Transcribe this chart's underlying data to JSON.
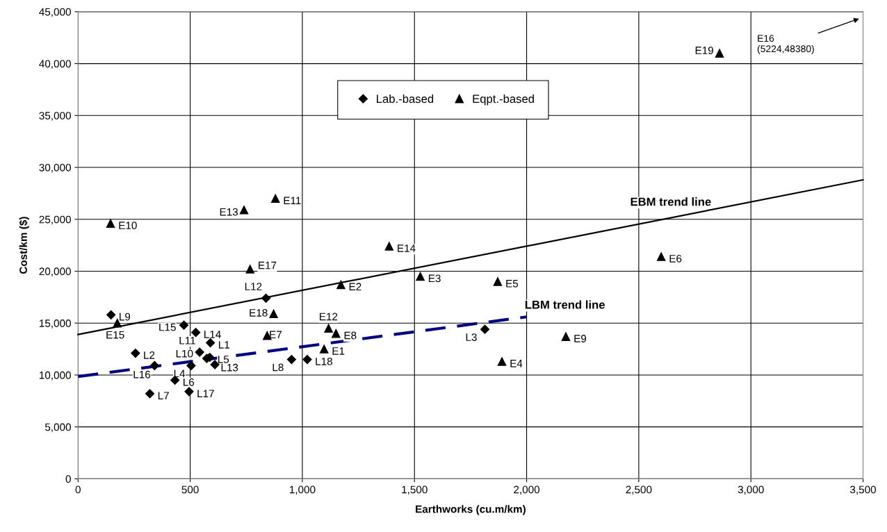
{
  "chart_data": {
    "type": "scatter",
    "xlabel": "Earthworks (cu.m/km)",
    "ylabel": "Cost/km ($)",
    "xlim": [
      0,
      3500
    ],
    "ylim": [
      0,
      45000
    ],
    "xticks": [
      0,
      {
        "value": 500,
        "label": "500"
      },
      {
        "value": 1000,
        "label": "1,000"
      },
      {
        "value": 1500,
        "label": "1,500"
      },
      {
        "value": 2000,
        "label": "2,000"
      },
      {
        "value": 2500,
        "label": "2,500"
      },
      {
        "value": 3000,
        "label": "3,000"
      },
      {
        "value": 3500,
        "label": "3,500"
      }
    ],
    "yticks": [
      0,
      {
        "value": 5000,
        "label": "5,000"
      },
      {
        "value": 10000,
        "label": "10,000"
      },
      {
        "value": 15000,
        "label": "15,000"
      },
      {
        "value": 20000,
        "label": "20,000"
      },
      {
        "value": 25000,
        "label": "25,000"
      },
      {
        "value": 30000,
        "label": "30,000"
      },
      {
        "value": 35000,
        "label": "35,000"
      },
      {
        "value": 40000,
        "label": "40,000"
      },
      {
        "value": 45000,
        "label": "45,000"
      }
    ],
    "grid": true,
    "legend": "top",
    "series": [
      {
        "name": "Lab.-based",
        "type": "scatter",
        "marker": "diamond",
        "color": "#000000",
        "x": [
          590,
          256,
          1814,
          504,
          587,
          432,
          320,
          952,
          147,
          574,
          542,
          838,
          610,
          525,
          472,
          341,
          495,
          1022
        ],
        "values": [
          13100,
          12100,
          14400,
          10900,
          11700,
          9500,
          8200,
          11500,
          15800,
          11600,
          12200,
          17400,
          11000,
          14100,
          14800,
          10900,
          8400,
          11500
        ]
      },
      {
        "name": "Eqpt.-based",
        "type": "scatter",
        "marker": "triangle",
        "color": "#000000",
        "x": [
          1097,
          1172,
          1526,
          1890,
          1871,
          2600,
          843,
          1150,
          2175,
          145,
          880,
          1117,
          740,
          1387,
          175,
          767,
          872,
          2860
        ],
        "values": [
          12500,
          18700,
          19500,
          11300,
          19000,
          21400,
          13800,
          14000,
          13700,
          24600,
          27000,
          14500,
          25900,
          22400,
          15000,
          20200,
          15900,
          41000
        ]
      },
      {
        "name": "EBM trend line",
        "type": "line",
        "line_style": "solid",
        "color": "#000000",
        "x": [
          0,
          3500
        ],
        "values": [
          13900,
          28800
        ]
      },
      {
        "name": "LBM trend line",
        "type": "line",
        "line_style": "dashed",
        "color": "#000080",
        "x": [
          0,
          2000
        ],
        "values": [
          9850,
          15600
        ]
      }
    ],
    "annotations": [
      {
        "text": "L1",
        "x": 590,
        "y": 13100
      },
      {
        "text": "L2",
        "x": 256,
        "y": 12100
      },
      {
        "text": "L3",
        "x": 1814,
        "y": 14400
      },
      {
        "text": "L4",
        "x": 504,
        "y": 10900
      },
      {
        "text": "L5",
        "x": 587,
        "y": 11700
      },
      {
        "text": "L6",
        "x": 432,
        "y": 9500
      },
      {
        "text": "L7",
        "x": 320,
        "y": 8200
      },
      {
        "text": "L8",
        "x": 952,
        "y": 11500
      },
      {
        "text": "L9",
        "x": 147,
        "y": 15800
      },
      {
        "text": "L10",
        "x": 574,
        "y": 11600
      },
      {
        "text": "L11",
        "x": 542,
        "y": 12200
      },
      {
        "text": "L12",
        "x": 838,
        "y": 17400
      },
      {
        "text": "L13",
        "x": 610,
        "y": 11000
      },
      {
        "text": "L14",
        "x": 525,
        "y": 14100
      },
      {
        "text": "L15",
        "x": 472,
        "y": 14800
      },
      {
        "text": "L16",
        "x": 341,
        "y": 10900
      },
      {
        "text": "L17",
        "x": 495,
        "y": 8400
      },
      {
        "text": "L18",
        "x": 1022,
        "y": 11500
      },
      {
        "text": "E1",
        "x": 1097,
        "y": 12500
      },
      {
        "text": "E2",
        "x": 1172,
        "y": 18700
      },
      {
        "text": "E3",
        "x": 1526,
        "y": 19500
      },
      {
        "text": "E4",
        "x": 1890,
        "y": 11300
      },
      {
        "text": "E5",
        "x": 1871,
        "y": 19000
      },
      {
        "text": "E6",
        "x": 2600,
        "y": 21400
      },
      {
        "text": "E7",
        "x": 843,
        "y": 13800
      },
      {
        "text": "E8",
        "x": 1150,
        "y": 14000
      },
      {
        "text": "E9",
        "x": 2175,
        "y": 13700
      },
      {
        "text": "E10",
        "x": 145,
        "y": 24600
      },
      {
        "text": "E11",
        "x": 880,
        "y": 27000
      },
      {
        "text": "E12",
        "x": 1117,
        "y": 14500
      },
      {
        "text": "E13",
        "x": 740,
        "y": 25900
      },
      {
        "text": "E14",
        "x": 1387,
        "y": 22400
      },
      {
        "text": "E15",
        "x": 175,
        "y": 15000
      },
      {
        "text": "E17",
        "x": 767,
        "y": 20200
      },
      {
        "text": "E18",
        "x": 872,
        "y": 15900
      },
      {
        "text": "E19",
        "x": 2860,
        "y": 41000
      },
      "E16\n(5224,48380)"
    ]
  }
}
